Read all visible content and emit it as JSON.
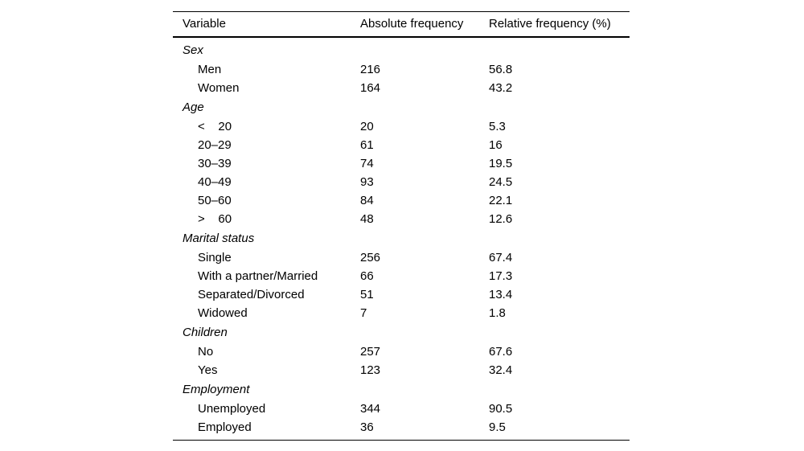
{
  "table": {
    "columns": [
      {
        "label": "Variable"
      },
      {
        "label": "Absolute frequency"
      },
      {
        "label": "Relative frequency (%)"
      }
    ],
    "sections": [
      {
        "category": "Sex",
        "rows": [
          {
            "label": "Men",
            "absolute": "216",
            "relative": "56.8"
          },
          {
            "label": "Women",
            "absolute": "164",
            "relative": "43.2"
          }
        ]
      },
      {
        "category": "Age",
        "rows": [
          {
            "label": "<    20",
            "absolute": "20",
            "relative": "5.3"
          },
          {
            "label": "20–29",
            "absolute": "61",
            "relative": "16"
          },
          {
            "label": "30–39",
            "absolute": "74",
            "relative": "19.5"
          },
          {
            "label": "40–49",
            "absolute": "93",
            "relative": "24.5"
          },
          {
            "label": "50–60",
            "absolute": "84",
            "relative": "22.1"
          },
          {
            "label": ">    60",
            "absolute": "48",
            "relative": "12.6"
          }
        ]
      },
      {
        "category": "Marital status",
        "rows": [
          {
            "label": "Single",
            "absolute": "256",
            "relative": "67.4"
          },
          {
            "label": "With a partner/Married",
            "absolute": "66",
            "relative": "17.3"
          },
          {
            "label": "Separated/Divorced",
            "absolute": "51",
            "relative": "13.4"
          },
          {
            "label": "Widowed",
            "absolute": "7",
            "relative": "1.8"
          }
        ]
      },
      {
        "category": "Children",
        "rows": [
          {
            "label": "No",
            "absolute": "257",
            "relative": "67.6"
          },
          {
            "label": "Yes",
            "absolute": "123",
            "relative": "32.4"
          }
        ]
      },
      {
        "category": "Employment",
        "rows": [
          {
            "label": "Unemployed",
            "absolute": "344",
            "relative": "90.5"
          },
          {
            "label": "Employed",
            "absolute": "36",
            "relative": "9.5"
          }
        ]
      }
    ]
  },
  "colors": {
    "text": "#000000",
    "background": "#ffffff",
    "rule": "#000000"
  }
}
